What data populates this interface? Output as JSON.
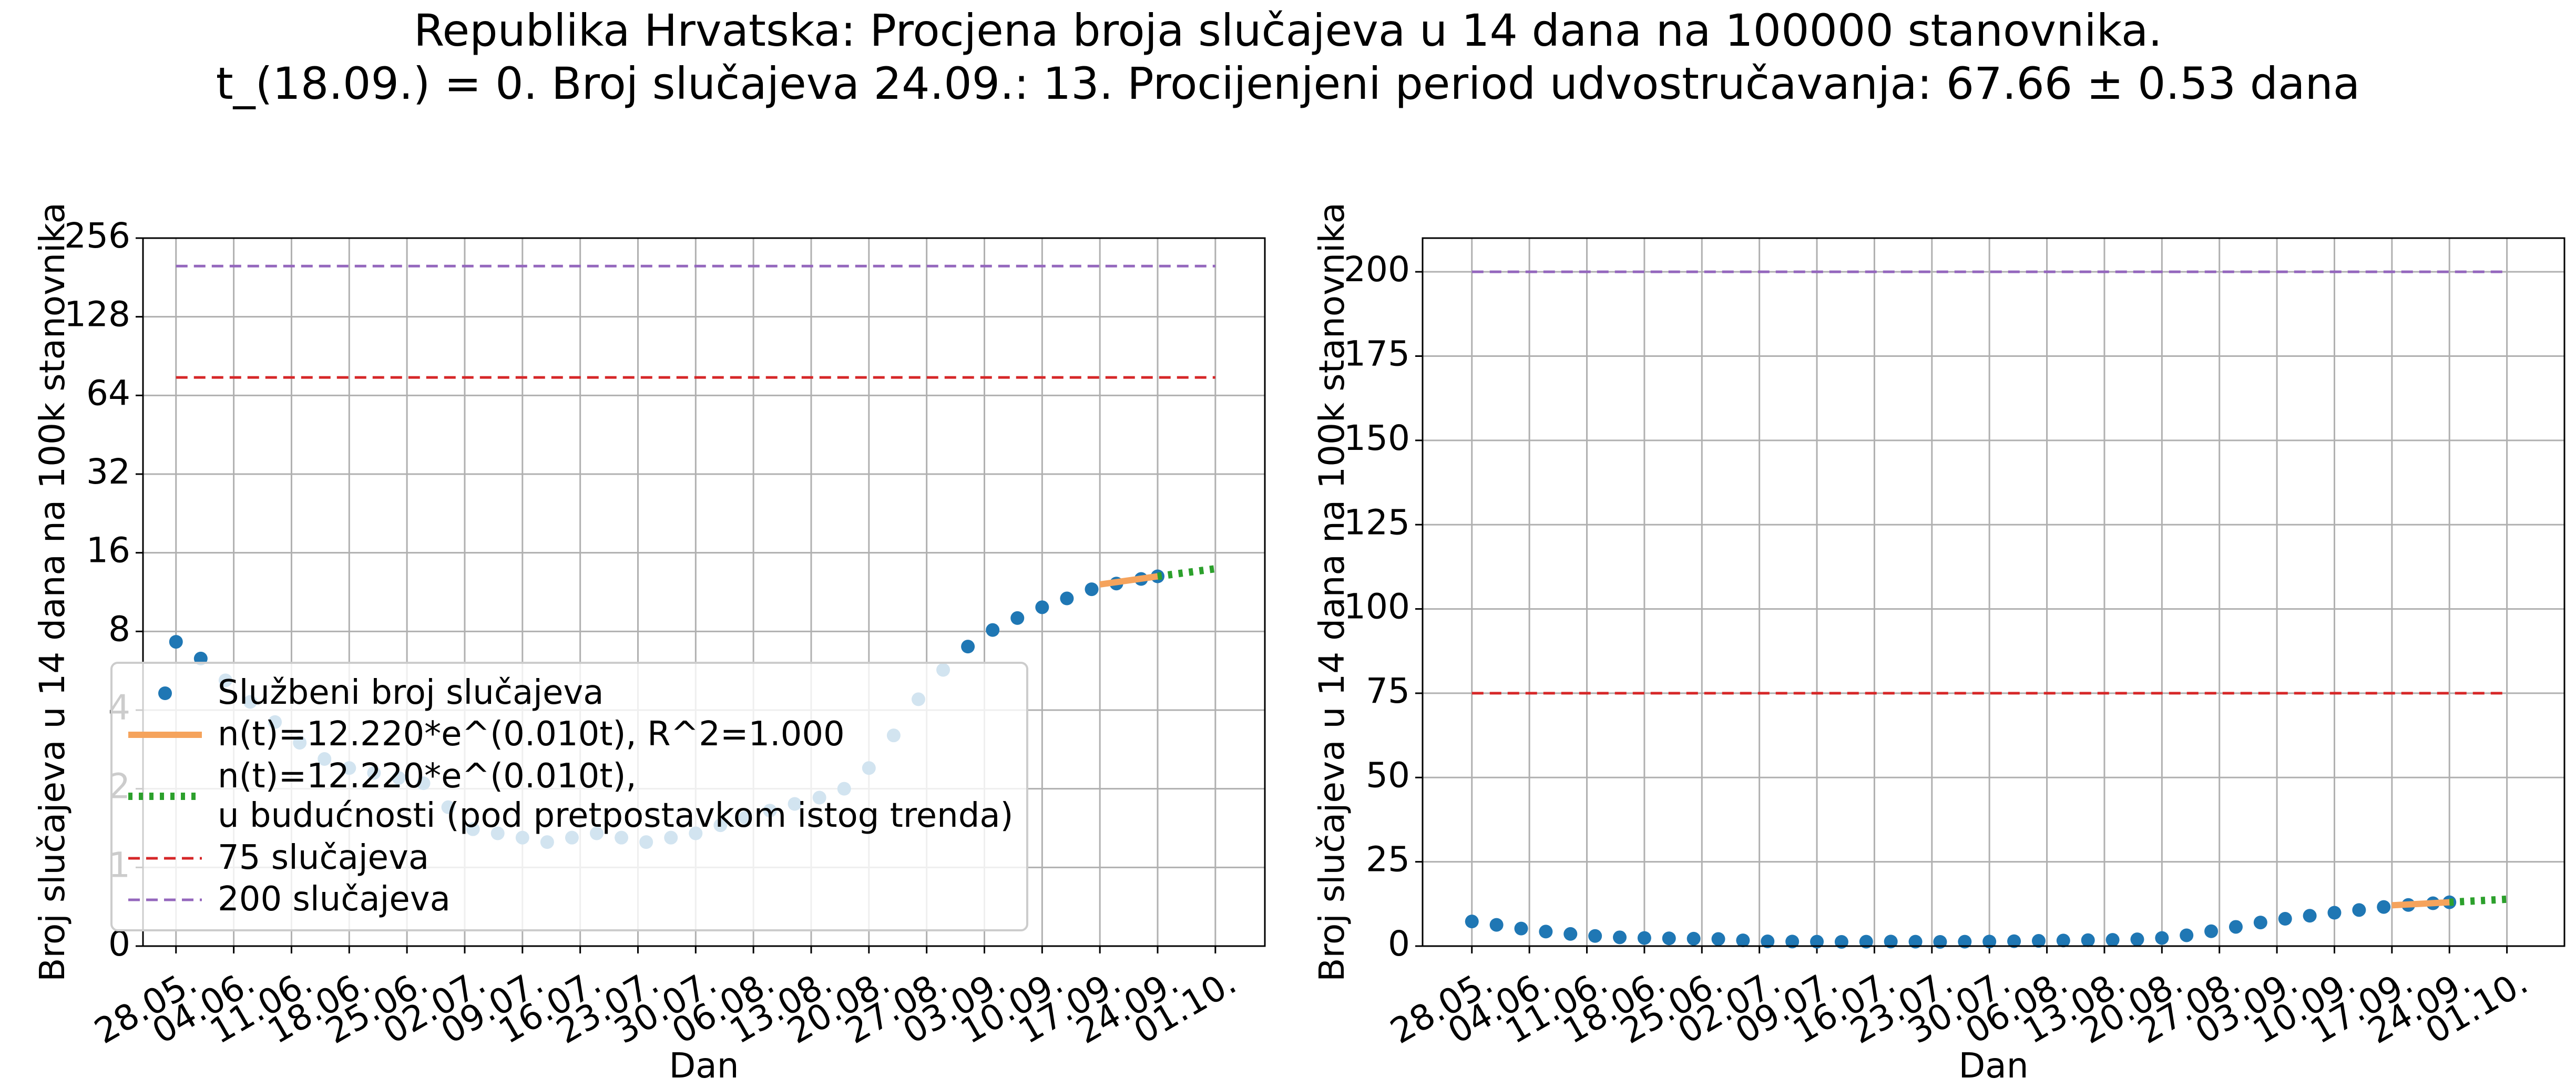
{
  "title": "Republika Hrvatska: Procjena broja slučajeva u 14 dana na 100000 stanovnika.\nt_(18.09.) = 0. Broj slučajeva 24.09.: 13. Procijenjeni period udvostručavanja: 67.66 ± 0.53 dana",
  "chart_data": [
    {
      "type": "line",
      "xlabel": "Dan",
      "ylabel": "Broj slučajeva u 14 dana na 100k stanovnika",
      "yscale": "symlog",
      "linthresh": 1,
      "base": 2,
      "grid": true,
      "legend": "lower left",
      "xlim": [
        "24.05.",
        "07.10."
      ],
      "ylim": [
        0,
        256
      ],
      "xticks": [
        "28.05.",
        "04.06.",
        "11.06.",
        "18.06.",
        "25.06.",
        "02.07.",
        "09.07.",
        "16.07.",
        "23.07.",
        "30.07.",
        "06.08.",
        "13.08.",
        "20.08.",
        "27.08.",
        "03.09.",
        "10.09.",
        "17.09.",
        "24.09.",
        "01.10."
      ],
      "yticks": [
        0,
        1,
        2,
        4,
        8,
        16,
        32,
        64,
        128,
        256
      ],
      "series": [
        {
          "name": "Službeni broj slučajeva",
          "style": "points",
          "color": "#1f77b4",
          "x": [
            "28.05.",
            "31.05.",
            "03.06.",
            "06.06.",
            "09.06.",
            "12.06.",
            "15.06.",
            "18.06.",
            "21.06.",
            "24.06.",
            "27.06.",
            "30.06.",
            "03.07.",
            "06.07.",
            "09.07.",
            "12.07.",
            "15.07.",
            "18.07.",
            "21.07.",
            "24.07.",
            "27.07.",
            "30.07.",
            "02.08.",
            "05.08.",
            "08.08.",
            "11.08.",
            "14.08.",
            "17.08.",
            "20.08.",
            "23.08.",
            "26.08.",
            "29.08.",
            "01.09.",
            "04.09.",
            "07.09.",
            "10.09.",
            "13.09.",
            "16.09.",
            "19.09.",
            "22.09.",
            "24.09."
          ],
          "values": [
            7.3,
            6.3,
            5.2,
            4.3,
            3.6,
            3.0,
            2.6,
            2.4,
            2.3,
            2.2,
            2.1,
            1.7,
            1.4,
            1.35,
            1.3,
            1.25,
            1.3,
            1.35,
            1.3,
            1.25,
            1.3,
            1.35,
            1.45,
            1.55,
            1.65,
            1.75,
            1.85,
            2.0,
            2.4,
            3.2,
            4.4,
            5.7,
            7.0,
            8.1,
            9.0,
            9.9,
            10.7,
            11.6,
            12.2,
            12.7,
            13.0
          ]
        },
        {
          "name": "n(t)=12.220*e^(0.010t), R^2=1.000",
          "style": "solid",
          "color": "#f5a35c",
          "x": [
            "17.09.",
            "24.09."
          ],
          "values": [
            12.1,
            13.0
          ]
        },
        {
          "name": "n(t)=12.220*e^(0.010t),\nu budućnosti (pod pretpostavkom istog trenda)",
          "style": "dotted",
          "color": "#2ca02c",
          "x": [
            "24.09.",
            "01.10."
          ],
          "values": [
            13.0,
            13.9
          ]
        },
        {
          "name": "75 slučajeva",
          "style": "dashed",
          "color": "#d62728",
          "x": [
            "28.05.",
            "01.10."
          ],
          "values": [
            75,
            75
          ]
        },
        {
          "name": "200 slučajeva",
          "style": "dashed",
          "color": "#9467bd",
          "x": [
            "28.05.",
            "01.10."
          ],
          "values": [
            200,
            200
          ]
        }
      ]
    },
    {
      "type": "line",
      "xlabel": "Dan",
      "ylabel": "Broj slučajeva u 14 dana na 100k stanovnika",
      "yscale": "linear",
      "grid": true,
      "xlim": [
        "22.05.",
        "08.10."
      ],
      "ylim": [
        0,
        210
      ],
      "xticks": [
        "28.05.",
        "04.06.",
        "11.06.",
        "18.06.",
        "25.06.",
        "02.07.",
        "09.07.",
        "16.07.",
        "23.07.",
        "30.07.",
        "06.08.",
        "13.08.",
        "20.08.",
        "27.08.",
        "03.09.",
        "10.09.",
        "17.09.",
        "24.09.",
        "01.10."
      ],
      "yticks": [
        0,
        25,
        50,
        75,
        100,
        125,
        150,
        175,
        200
      ],
      "series": [
        {
          "style": "points",
          "color": "#1f77b4",
          "x": [
            "28.05.",
            "31.05.",
            "03.06.",
            "06.06.",
            "09.06.",
            "12.06.",
            "15.06.",
            "18.06.",
            "21.06.",
            "24.06.",
            "27.06.",
            "30.06.",
            "03.07.",
            "06.07.",
            "09.07.",
            "12.07.",
            "15.07.",
            "18.07.",
            "21.07.",
            "24.07.",
            "27.07.",
            "30.07.",
            "02.08.",
            "05.08.",
            "08.08.",
            "11.08.",
            "14.08.",
            "17.08.",
            "20.08.",
            "23.08.",
            "26.08.",
            "29.08.",
            "01.09.",
            "04.09.",
            "07.09.",
            "10.09.",
            "13.09.",
            "16.09.",
            "19.09.",
            "22.09.",
            "24.09."
          ],
          "values": [
            7.3,
            6.3,
            5.2,
            4.3,
            3.6,
            3.0,
            2.6,
            2.4,
            2.3,
            2.2,
            2.1,
            1.7,
            1.4,
            1.35,
            1.3,
            1.25,
            1.3,
            1.35,
            1.3,
            1.25,
            1.3,
            1.35,
            1.45,
            1.55,
            1.65,
            1.75,
            1.85,
            2.0,
            2.4,
            3.2,
            4.4,
            5.7,
            7.0,
            8.1,
            9.0,
            9.9,
            10.7,
            11.6,
            12.2,
            12.7,
            13.0
          ]
        },
        {
          "style": "solid",
          "color": "#f5a35c",
          "x": [
            "17.09.",
            "24.09."
          ],
          "values": [
            12.1,
            13.0
          ]
        },
        {
          "style": "dotted",
          "color": "#2ca02c",
          "x": [
            "24.09.",
            "01.10."
          ],
          "values": [
            13.0,
            13.9
          ]
        },
        {
          "style": "dashed",
          "color": "#d62728",
          "x": [
            "28.05.",
            "01.10."
          ],
          "values": [
            75,
            75
          ]
        },
        {
          "style": "dashed",
          "color": "#9467bd",
          "x": [
            "28.05.",
            "01.10."
          ],
          "values": [
            200,
            200
          ]
        }
      ]
    }
  ]
}
